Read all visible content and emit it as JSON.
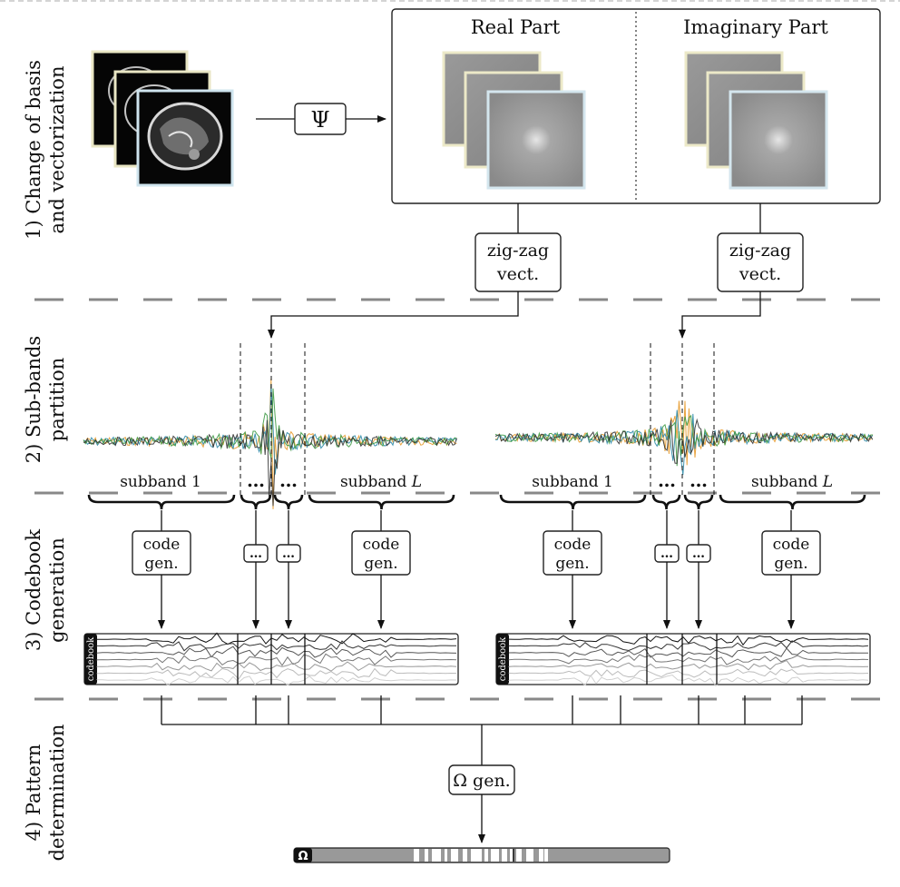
{
  "stages": {
    "s1": "1) Change of basis",
    "s1b": "and vectorization",
    "s2": "2) Sub-bands",
    "s2b": "partition",
    "s3": "3) Codebook",
    "s3b": "generation",
    "s4": "4) Pattern",
    "s4b": "determination"
  },
  "transform": {
    "symbol": "Ψ"
  },
  "panel": {
    "real": "Real Part",
    "imag": "Imaginary Part"
  },
  "zigzag": {
    "line1": "zig-zag",
    "line2": "vect."
  },
  "subbands": {
    "first": "subband 1",
    "last_prefix": "subband ",
    "last_var": "L",
    "dots": "…"
  },
  "codegen": {
    "line1": "code",
    "line2": "gen.",
    "dots": "…"
  },
  "codebook": {
    "label": "codebook"
  },
  "omega": {
    "gen": "Ω gen.",
    "label": "Ω"
  }
}
